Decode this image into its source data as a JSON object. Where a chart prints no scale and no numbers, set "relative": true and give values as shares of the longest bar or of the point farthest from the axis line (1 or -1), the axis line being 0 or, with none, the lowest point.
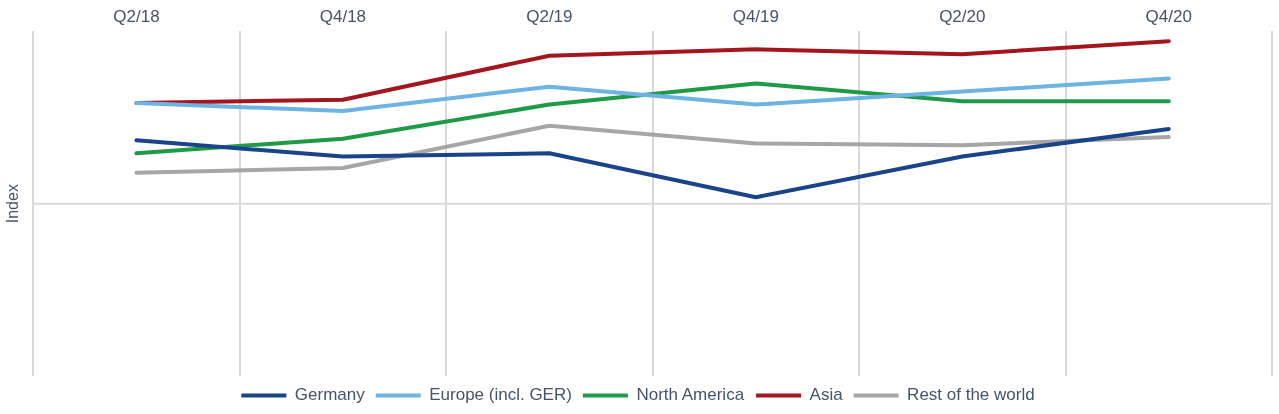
{
  "chart_data": {
    "type": "line",
    "ylabel": "Index",
    "relative": true,
    "categories": [
      "Q2/18",
      "Q4/18",
      "Q2/19",
      "Q4/19",
      "Q2/20",
      "Q4/20"
    ],
    "series": [
      {
        "name": "Germany",
        "color": "#1a4489",
        "values": [
          0.39,
          0.29,
          0.31,
          0.04,
          0.29,
          0.46
        ]
      },
      {
        "name": "Europe (incl. GER)",
        "color": "#6cb4e3",
        "values": [
          0.62,
          0.57,
          0.72,
          0.61,
          0.69,
          0.77
        ]
      },
      {
        "name": "North America",
        "color": "#1f9a48",
        "values": [
          0.31,
          0.4,
          0.61,
          0.74,
          0.63,
          0.63
        ]
      },
      {
        "name": "Asia",
        "color": "#a3161f",
        "values": [
          0.62,
          0.64,
          0.91,
          0.95,
          0.92,
          1
        ]
      },
      {
        "name": "Rest of the world",
        "color": "#a6a6a6",
        "values": [
          0.19,
          0.22,
          0.48,
          0.37,
          0.36,
          0.41
        ]
      }
    ],
    "grid": "x",
    "legend": "bottom",
    "marker": "none"
  }
}
